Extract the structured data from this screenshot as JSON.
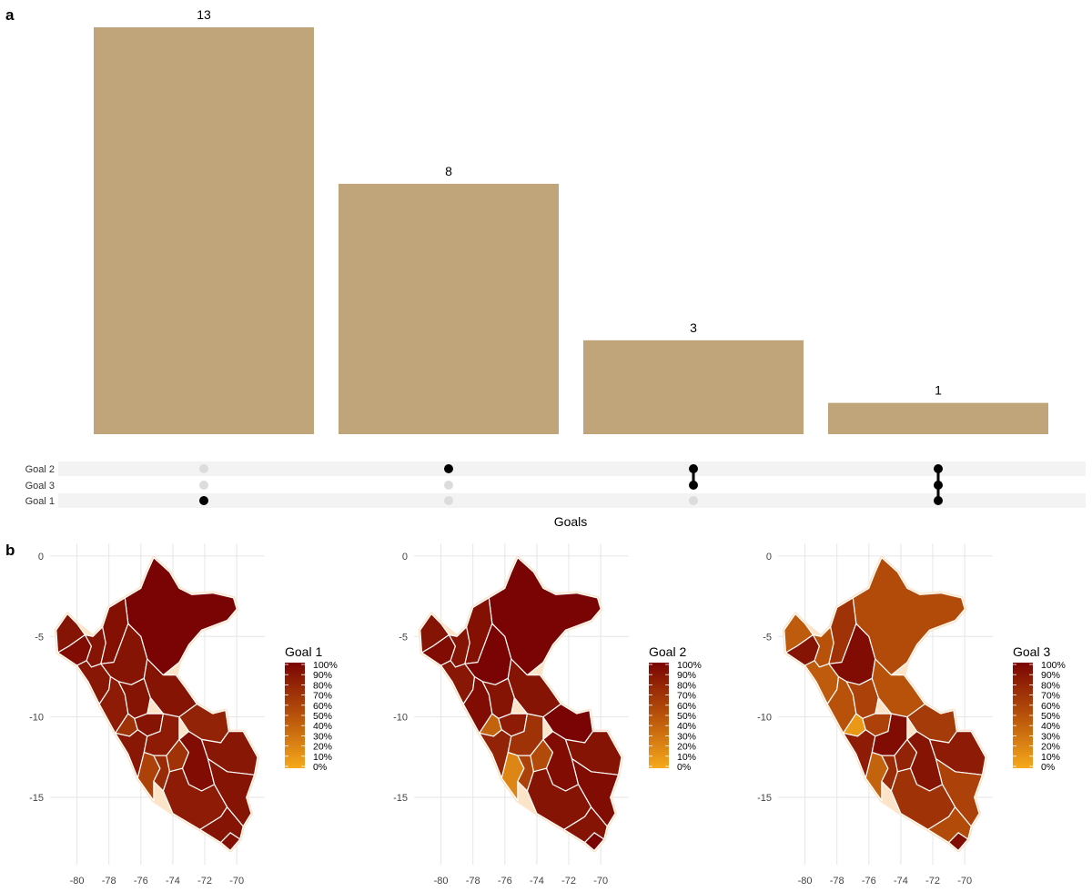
{
  "panels": {
    "a": "a",
    "b": "b"
  },
  "colors": {
    "bar": "#c1a57a",
    "dot_active": "#000000",
    "dot_inactive": "#dcdcdc",
    "stripe": "#f3f3f3",
    "grid": "#e6e6e6",
    "border": "#fbe4c8",
    "scale_high": "#7a0403",
    "scale_mid": "#b8520a",
    "scale_low": "#f6a91c"
  },
  "chart_data": [
    {
      "type": "bar",
      "subtype": "upset",
      "categories": [
        "Goal 1",
        "Goal 2",
        "Goal 2 & Goal 3",
        "Goal 1 & Goal 2 & Goal 3"
      ],
      "values": [
        13,
        8,
        3,
        1
      ],
      "data_labels": [
        "13",
        "8",
        "3",
        "1"
      ],
      "sets": [
        "Goal 2",
        "Goal 3",
        "Goal 1"
      ],
      "membership": [
        [
          false,
          false,
          true
        ],
        [
          true,
          false,
          false
        ],
        [
          true,
          true,
          false
        ],
        [
          true,
          true,
          true
        ]
      ],
      "xlabel": "Goals",
      "ylim": [
        0,
        13
      ]
    },
    {
      "type": "heatmap",
      "subtype": "choropleth",
      "title": "Goal 1",
      "legend_title": "Goal 1",
      "legend_ticks": [
        "100%",
        "90%",
        "80%",
        "70%",
        "60%",
        "50%",
        "40%",
        "30%",
        "20%",
        "10%",
        "0%"
      ],
      "x_ticks": [
        "-80",
        "-78",
        "-76",
        "-74",
        "-72",
        "-70"
      ],
      "y_ticks": [
        "0",
        "-5",
        "-10",
        "-15"
      ],
      "region_levels": [
        1.0,
        0.9,
        0.95,
        0.9,
        0.92,
        0.88,
        0.9,
        0.85,
        0.9,
        0.9,
        0.7,
        0.9,
        0.88,
        0.85,
        0.8,
        0.6,
        0.75,
        0.7,
        0.95,
        0.88,
        0.9,
        0.85,
        0.9,
        0.92
      ]
    },
    {
      "type": "heatmap",
      "subtype": "choropleth",
      "title": "Goal 2",
      "legend_title": "Goal 2",
      "legend_ticks": [
        "100%",
        "90%",
        "80%",
        "70%",
        "60%",
        "50%",
        "40%",
        "30%",
        "20%",
        "10%",
        "0%"
      ],
      "x_ticks": [
        "-80",
        "-78",
        "-76",
        "-74",
        "-72",
        "-70"
      ],
      "y_ticks": [
        "0",
        "-5",
        "-10",
        "-15"
      ],
      "region_levels": [
        1.0,
        0.9,
        0.95,
        0.9,
        0.92,
        0.88,
        1.0,
        0.95,
        0.9,
        0.9,
        0.4,
        0.85,
        0.8,
        0.7,
        1.0,
        0.2,
        0.6,
        0.55,
        0.95,
        0.9,
        0.95,
        0.9,
        0.9,
        1.0
      ]
    },
    {
      "type": "heatmap",
      "subtype": "choropleth",
      "title": "Goal 3",
      "legend_title": "Goal 3",
      "legend_ticks": [
        "100%",
        "90%",
        "80%",
        "70%",
        "60%",
        "50%",
        "40%",
        "30%",
        "20%",
        "10%",
        "0%"
      ],
      "x_ticks": [
        "-80",
        "-78",
        "-76",
        "-74",
        "-72",
        "-70"
      ],
      "y_ticks": [
        "0",
        "-5",
        "-10",
        "-15"
      ],
      "region_levels": [
        0.55,
        0.45,
        0.9,
        0.5,
        0.7,
        0.45,
        0.95,
        0.5,
        0.6,
        0.5,
        0.1,
        0.6,
        0.85,
        0.95,
        0.65,
        0.4,
        0.75,
        0.8,
        0.9,
        0.85,
        0.6,
        0.7,
        0.55,
        0.95
      ]
    }
  ]
}
